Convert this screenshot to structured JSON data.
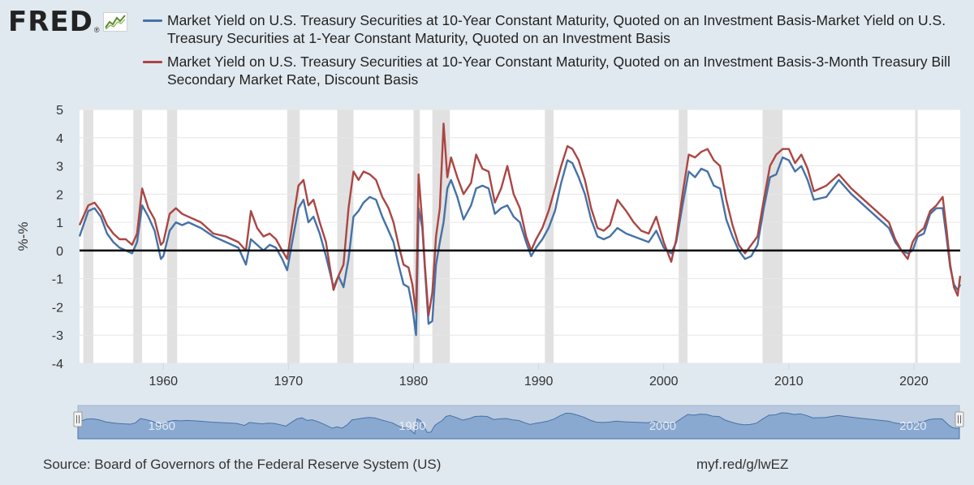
{
  "logo": {
    "text": "FRED",
    "reg": "®",
    "icon": "line-chart-icon"
  },
  "colors": {
    "series1": "#4572a7",
    "series2": "#aa4643",
    "recession": "#e1e1e1",
    "navigator_fill": "#8aa9d0",
    "navigator_line": "#4572a7",
    "background": "#e1e9f0",
    "grid": "#e6e6e6",
    "zero_line": "#000000"
  },
  "chart_data": {
    "type": "line",
    "title": "",
    "xlabel": "",
    "ylabel": "%-%",
    "xlim": [
      1953.3,
      2023.7
    ],
    "ylim": [
      -4,
      5
    ],
    "yticks": [
      "5",
      "4",
      "3",
      "2",
      "1",
      "0",
      "-1",
      "-2",
      "-3",
      "-4"
    ],
    "xticks": [
      "1960",
      "1970",
      "1980",
      "1990",
      "2000",
      "2010",
      "2020"
    ],
    "recessions": [
      [
        1953.6,
        1954.4
      ],
      [
        1957.6,
        1958.3
      ],
      [
        1960.3,
        1961.1
      ],
      [
        1969.9,
        1970.9
      ],
      [
        1973.9,
        1975.2
      ],
      [
        1980.0,
        1980.5
      ],
      [
        1981.5,
        1982.9
      ],
      [
        1990.5,
        1991.2
      ],
      [
        2001.2,
        2001.9
      ],
      [
        2007.9,
        2009.5
      ],
      [
        2020.1,
        2020.3
      ]
    ],
    "series": [
      {
        "name": "Market Yield on U.S. Treasury Securities at 10-Year Constant Maturity, Quoted on an Investment Basis-Market Yield on U.S. Treasury Securities at 1-Year Constant Maturity, Quoted on an Investment Basis",
        "x": [
          1953.3,
          1954.0,
          1954.5,
          1955.0,
          1955.5,
          1956.0,
          1956.5,
          1957.0,
          1957.5,
          1957.9,
          1958.3,
          1958.8,
          1959.3,
          1959.8,
          1960.0,
          1960.5,
          1961.0,
          1961.5,
          1962.0,
          1963.0,
          1964.0,
          1965.0,
          1966.0,
          1966.6,
          1967.0,
          1967.5,
          1968.0,
          1968.5,
          1969.0,
          1969.5,
          1969.9,
          1970.3,
          1970.8,
          1971.2,
          1971.6,
          1972.0,
          1972.5,
          1973.0,
          1973.6,
          1974.0,
          1974.4,
          1974.8,
          1975.2,
          1975.6,
          1976.0,
          1976.5,
          1977.0,
          1977.5,
          1978.0,
          1978.4,
          1978.8,
          1979.2,
          1979.6,
          1979.9,
          1980.2,
          1980.4,
          1980.7,
          1980.9,
          1981.2,
          1981.5,
          1981.8,
          1982.1,
          1982.4,
          1982.7,
          1983.0,
          1983.5,
          1984.0,
          1984.6,
          1985.0,
          1985.5,
          1986.0,
          1986.5,
          1987.0,
          1987.5,
          1988.0,
          1988.5,
          1989.0,
          1989.4,
          1989.8,
          1990.3,
          1990.8,
          1991.3,
          1991.8,
          1992.3,
          1992.7,
          1993.2,
          1993.7,
          1994.2,
          1994.7,
          1995.2,
          1995.7,
          1996.3,
          1997.0,
          1997.6,
          1998.2,
          1998.8,
          1999.4,
          2000.0,
          2000.6,
          2001.0,
          2001.5,
          2002.0,
          2002.5,
          2003.0,
          2003.5,
          2004.0,
          2004.5,
          2005.0,
          2005.5,
          2006.0,
          2006.5,
          2007.0,
          2007.5,
          2008.0,
          2008.5,
          2009.0,
          2009.5,
          2010.0,
          2010.5,
          2011.0,
          2011.5,
          2012.0,
          2013.0,
          2014.0,
          2015.0,
          2016.0,
          2017.0,
          2018.0,
          2018.5,
          2019.0,
          2019.5,
          2019.9,
          2020.3,
          2020.8,
          2021.3,
          2021.8,
          2022.3,
          2022.6,
          2022.9,
          2023.2,
          2023.5,
          2023.7
        ],
        "values": [
          0.5,
          1.4,
          1.5,
          1.2,
          0.6,
          0.3,
          0.1,
          0.0,
          -0.1,
          0.3,
          1.6,
          1.2,
          0.7,
          -0.3,
          -0.2,
          0.7,
          1.0,
          0.9,
          1.0,
          0.8,
          0.5,
          0.3,
          0.1,
          -0.5,
          0.4,
          0.2,
          0.0,
          0.2,
          0.1,
          -0.3,
          -0.7,
          0.3,
          1.5,
          1.8,
          1.0,
          1.2,
          0.6,
          -0.2,
          -1.3,
          -0.9,
          -1.3,
          -0.3,
          1.2,
          1.4,
          1.7,
          1.9,
          1.8,
          1.2,
          0.7,
          0.3,
          -0.5,
          -1.2,
          -1.3,
          -2.0,
          -3.0,
          1.5,
          0.8,
          -0.6,
          -2.6,
          -2.5,
          -0.5,
          0.3,
          1.0,
          2.2,
          2.5,
          1.9,
          1.1,
          1.6,
          2.2,
          2.3,
          2.2,
          1.3,
          1.5,
          1.6,
          1.2,
          1.0,
          0.3,
          -0.2,
          0.1,
          0.4,
          0.8,
          1.4,
          2.4,
          3.2,
          3.1,
          2.6,
          2.0,
          1.1,
          0.5,
          0.4,
          0.5,
          0.8,
          0.6,
          0.5,
          0.4,
          0.3,
          0.7,
          0.1,
          -0.1,
          0.3,
          1.6,
          2.8,
          2.6,
          2.9,
          2.8,
          2.3,
          2.2,
          1.1,
          0.5,
          0.0,
          -0.3,
          -0.2,
          0.2,
          1.5,
          2.6,
          2.7,
          3.3,
          3.2,
          2.8,
          3.0,
          2.5,
          1.8,
          1.9,
          2.5,
          2.0,
          1.6,
          1.2,
          0.8,
          0.3,
          0.0,
          -0.1,
          0.0,
          0.5,
          0.6,
          1.3,
          1.5,
          1.5,
          0.5,
          -0.6,
          -1.2,
          -1.4,
          -1.2
        ]
      },
      {
        "name": "Market Yield on U.S. Treasury Securities at 10-Year Constant Maturity, Quoted on an Investment Basis-3-Month Treasury Bill Secondary Market Rate, Discount Basis",
        "x": [
          1953.3,
          1954.0,
          1954.5,
          1955.0,
          1955.5,
          1956.0,
          1956.5,
          1957.0,
          1957.5,
          1957.9,
          1958.3,
          1958.8,
          1959.3,
          1959.8,
          1960.0,
          1960.5,
          1961.0,
          1961.5,
          1962.0,
          1963.0,
          1964.0,
          1965.0,
          1966.0,
          1966.6,
          1967.0,
          1967.5,
          1968.0,
          1968.5,
          1969.0,
          1969.5,
          1969.9,
          1970.3,
          1970.8,
          1971.2,
          1971.6,
          1972.0,
          1972.5,
          1973.0,
          1973.6,
          1974.0,
          1974.4,
          1974.8,
          1975.2,
          1975.6,
          1976.0,
          1976.5,
          1977.0,
          1977.5,
          1978.0,
          1978.4,
          1978.8,
          1979.2,
          1979.6,
          1979.9,
          1980.2,
          1980.4,
          1980.7,
          1980.9,
          1981.2,
          1981.5,
          1981.8,
          1982.1,
          1982.4,
          1982.7,
          1983.0,
          1983.5,
          1984.0,
          1984.6,
          1985.0,
          1985.5,
          1986.0,
          1986.5,
          1987.0,
          1987.5,
          1988.0,
          1988.5,
          1989.0,
          1989.4,
          1989.8,
          1990.3,
          1990.8,
          1991.3,
          1991.8,
          1992.3,
          1992.7,
          1993.2,
          1993.7,
          1994.2,
          1994.7,
          1995.2,
          1995.7,
          1996.3,
          1997.0,
          1997.6,
          1998.2,
          1998.8,
          1999.4,
          2000.0,
          2000.6,
          2001.0,
          2001.5,
          2002.0,
          2002.5,
          2003.0,
          2003.5,
          2004.0,
          2004.5,
          2005.0,
          2005.5,
          2006.0,
          2006.5,
          2007.0,
          2007.5,
          2008.0,
          2008.5,
          2009.0,
          2009.5,
          2010.0,
          2010.5,
          2011.0,
          2011.5,
          2012.0,
          2013.0,
          2014.0,
          2015.0,
          2016.0,
          2017.0,
          2018.0,
          2018.5,
          2019.0,
          2019.5,
          2019.9,
          2020.3,
          2020.8,
          2021.3,
          2021.8,
          2022.3,
          2022.6,
          2022.9,
          2023.2,
          2023.5,
          2023.7
        ],
        "values": [
          0.9,
          1.6,
          1.7,
          1.4,
          0.9,
          0.6,
          0.4,
          0.4,
          0.2,
          0.6,
          2.2,
          1.5,
          1.1,
          0.2,
          0.3,
          1.3,
          1.5,
          1.3,
          1.2,
          1.0,
          0.6,
          0.5,
          0.3,
          0.0,
          1.4,
          0.8,
          0.5,
          0.6,
          0.4,
          0.0,
          -0.3,
          0.9,
          2.3,
          2.5,
          1.6,
          1.8,
          1.0,
          0.3,
          -1.4,
          -0.9,
          -0.5,
          1.5,
          2.8,
          2.5,
          2.8,
          2.7,
          2.5,
          1.9,
          1.5,
          1.0,
          0.2,
          -0.5,
          -0.6,
          -1.2,
          -2.2,
          2.7,
          1.0,
          -0.5,
          -2.3,
          -1.5,
          0.5,
          1.5,
          4.5,
          2.6,
          3.3,
          2.6,
          2.0,
          2.4,
          3.4,
          2.9,
          2.8,
          1.7,
          2.2,
          3.0,
          2.0,
          1.5,
          0.5,
          0.0,
          0.4,
          0.8,
          1.4,
          2.2,
          3.0,
          3.7,
          3.6,
          3.2,
          2.5,
          1.5,
          0.8,
          0.7,
          0.9,
          1.8,
          1.4,
          1.0,
          0.7,
          0.6,
          1.2,
          0.3,
          -0.4,
          0.4,
          2.0,
          3.4,
          3.3,
          3.5,
          3.6,
          3.2,
          3.0,
          1.8,
          0.9,
          0.2,
          -0.1,
          0.2,
          0.5,
          1.8,
          3.0,
          3.4,
          3.6,
          3.6,
          3.1,
          3.4,
          2.9,
          2.1,
          2.3,
          2.7,
          2.2,
          1.8,
          1.4,
          1.0,
          0.4,
          0.0,
          -0.3,
          0.3,
          0.6,
          0.8,
          1.4,
          1.6,
          1.9,
          0.8,
          -0.5,
          -1.3,
          -1.6,
          -0.9
        ]
      }
    ]
  },
  "navigator": {
    "labels": [
      "1960",
      "1980",
      "2000",
      "2020"
    ],
    "handle_left": "⦀",
    "handle_right": "⦀"
  },
  "footer": {
    "source": "Source: Board of Governors of the Federal Reserve System (US)",
    "link": "myf.red/g/lwEZ"
  }
}
